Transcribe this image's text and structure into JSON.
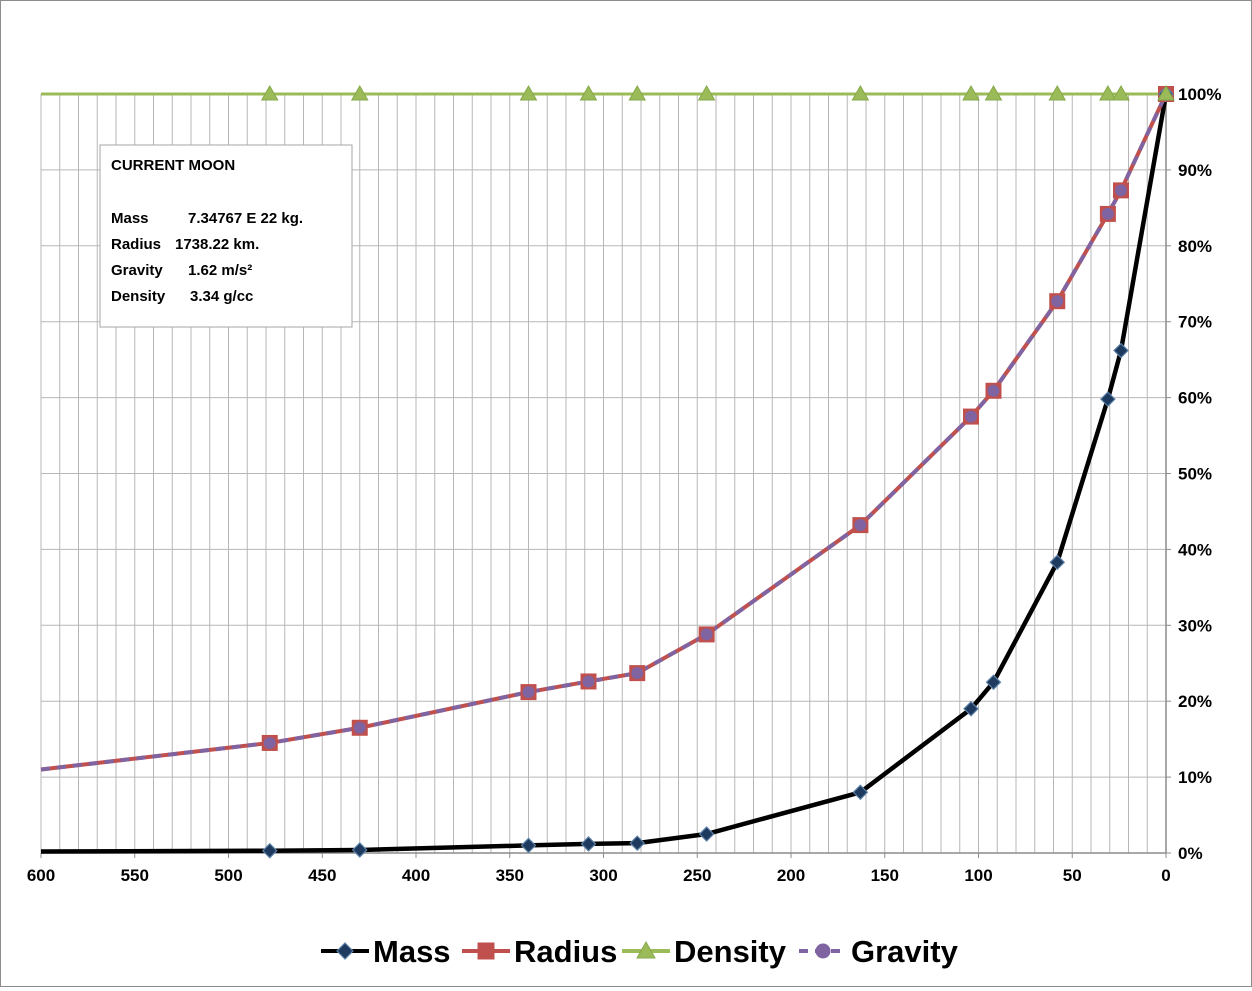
{
  "chart_data": {
    "type": "line",
    "title": "",
    "xlabel": "",
    "ylabel": "",
    "xlim": [
      600,
      0
    ],
    "x_reversed": true,
    "ylim": [
      0,
      100
    ],
    "y_unit": "%",
    "y_axis_side": "right",
    "grid": true,
    "legend_position": "bottom",
    "x_ticks": [
      "600",
      "550",
      "500",
      "450",
      "400",
      "350",
      "300",
      "250",
      "200",
      "150",
      "100",
      "50",
      "0"
    ],
    "y_ticks": [
      "0%",
      "10%",
      "20%",
      "30%",
      "40%",
      "50%",
      "60%",
      "70%",
      "80%",
      "90%",
      "100%"
    ],
    "series": [
      {
        "name": "Mass",
        "color": "#000000",
        "marker": "diamond",
        "marker_color": "#1f3a5f",
        "points": [
          [
            600,
            0.2
          ],
          [
            478,
            0.3
          ],
          [
            430,
            0.4
          ],
          [
            340,
            1.0
          ],
          [
            308,
            1.2
          ],
          [
            282,
            1.3
          ],
          [
            245,
            2.5
          ],
          [
            163,
            8.0
          ],
          [
            104,
            19.0
          ],
          [
            92,
            22.5
          ],
          [
            58,
            38.3
          ],
          [
            31,
            59.8
          ],
          [
            24,
            66.2
          ],
          [
            0,
            100
          ]
        ]
      },
      {
        "name": "Radius",
        "color": "#c0504d",
        "marker": "square",
        "marker_color": "#c0504d",
        "points": [
          [
            600,
            11.0
          ],
          [
            478,
            14.5
          ],
          [
            430,
            16.5
          ],
          [
            340,
            21.2
          ],
          [
            308,
            22.6
          ],
          [
            282,
            23.7
          ],
          [
            245,
            28.8
          ],
          [
            163,
            43.2
          ],
          [
            104,
            57.5
          ],
          [
            92,
            60.9
          ],
          [
            58,
            72.7
          ],
          [
            31,
            84.2
          ],
          [
            24,
            87.3
          ],
          [
            0,
            100
          ]
        ]
      },
      {
        "name": "Density",
        "color": "#9bbb59",
        "marker": "triangle",
        "marker_color": "#9bbb59",
        "points": [
          [
            600,
            100
          ],
          [
            478,
            100
          ],
          [
            430,
            100
          ],
          [
            340,
            100
          ],
          [
            308,
            100
          ],
          [
            282,
            100
          ],
          [
            245,
            100
          ],
          [
            163,
            100
          ],
          [
            104,
            100
          ],
          [
            92,
            100
          ],
          [
            58,
            100
          ],
          [
            31,
            100
          ],
          [
            24,
            100
          ],
          [
            0,
            100
          ]
        ]
      },
      {
        "name": "Gravity",
        "color": "#8064a2",
        "marker": "circle",
        "marker_color": "#8064a2",
        "points": [
          [
            600,
            11.0
          ],
          [
            478,
            14.5
          ],
          [
            430,
            16.5
          ],
          [
            340,
            21.2
          ],
          [
            308,
            22.6
          ],
          [
            282,
            23.7
          ],
          [
            245,
            28.8
          ],
          [
            163,
            43.2
          ],
          [
            104,
            57.5
          ],
          [
            92,
            60.9
          ],
          [
            58,
            72.7
          ],
          [
            31,
            84.2
          ],
          [
            24,
            87.3
          ],
          [
            0,
            100
          ]
        ]
      }
    ],
    "annotation": {
      "title": "CURRENT MOON",
      "lines": [
        {
          "label": "Mass",
          "value": "7.34767 E 22 kg."
        },
        {
          "label": "Radius",
          "value": "1738.22 km."
        },
        {
          "label": "Gravity",
          "value": "1.62 m/s²"
        },
        {
          "label": "Density",
          "value": "3.34 g/cc"
        }
      ]
    }
  }
}
